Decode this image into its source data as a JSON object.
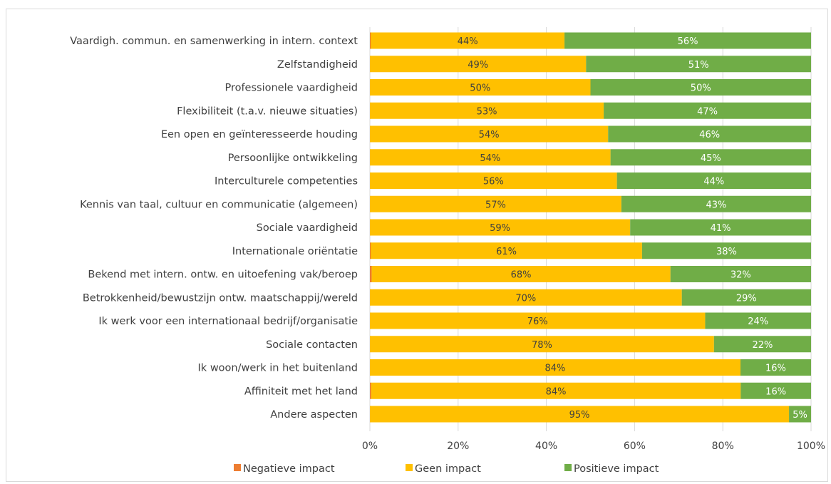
{
  "chart_data": {
    "type": "bar",
    "orientation": "horizontal",
    "stacked": "percent",
    "title": "",
    "xlabel": "",
    "ylabel": "",
    "xlim": [
      0,
      100
    ],
    "x_ticks": [
      "0%",
      "20%",
      "40%",
      "60%",
      "80%",
      "100%"
    ],
    "grid": "vertical",
    "legend_position": "bottom",
    "categories": [
      "Vaardigh. commun. en samenwerking in intern. context",
      "Zelfstandigheid",
      "Professionele vaardigheid",
      "Flexibiliteit (t.a.v. nieuwe situaties)",
      "Een open en geïnteresseerde houding",
      "Persoonlijke ontwikkeling",
      "Interculturele competenties",
      "Kennis van taal, cultuur en communicatie (algemeen)",
      "Sociale vaardigheid",
      "Internationale oriëntatie",
      "Bekend met intern. ontw. en uitoefening vak/beroep",
      "Betrokkenheid/bewustzijn ontw. maatschappij/wereld",
      "Ik werk voor een internationaal bedrijf/organisatie",
      "Sociale contacten",
      "Ik woon/werk in het buitenland",
      "Affiniteit met het land",
      "Andere aspecten"
    ],
    "series": [
      {
        "name": "Negatieve impact",
        "color": "#ed7d31",
        "values": [
          0.2,
          0,
          0,
          0,
          0,
          0,
          0,
          0,
          0,
          0.2,
          0.4,
          0,
          0,
          0,
          0,
          0.3,
          0
        ]
      },
      {
        "name": "Geen impact",
        "color": "#ffc000",
        "values": [
          44,
          49,
          50,
          53,
          54,
          54,
          56,
          57,
          59,
          61,
          68,
          70,
          76,
          78,
          84,
          84,
          95
        ],
        "labels": [
          "44%",
          "49%",
          "50%",
          "53%",
          "54%",
          "54%",
          "56%",
          "57%",
          "59%",
          "61%",
          "68%",
          "70%",
          "76%",
          "78%",
          "84%",
          "84%",
          "95%"
        ]
      },
      {
        "name": "Positieve impact",
        "color": "#70ad47",
        "values": [
          56,
          51,
          50,
          47,
          46,
          45,
          44,
          43,
          41,
          38,
          32,
          29,
          24,
          22,
          16,
          16,
          5
        ],
        "labels": [
          "56%",
          "51%",
          "50%",
          "47%",
          "46%",
          "45%",
          "44%",
          "43%",
          "41%",
          "38%",
          "32%",
          "29%",
          "24%",
          "22%",
          "16%",
          "16%",
          "5%"
        ]
      }
    ]
  }
}
